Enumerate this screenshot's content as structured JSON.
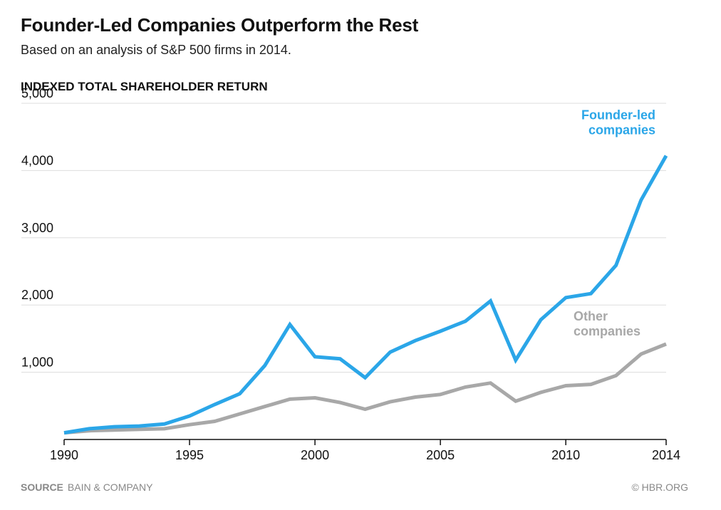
{
  "header": {
    "title": "Founder-Led Companies Outperform the Rest",
    "subtitle": "Based on an analysis of S&P 500 firms in 2014."
  },
  "footer": {
    "source_key": "SOURCE",
    "source_value": "BAIN & COMPANY",
    "credit": "© HBR.ORG"
  },
  "colors": {
    "founder": "#2ba6e8",
    "other": "#a8a8a8",
    "grid": "#dddddd",
    "axis": "#111111"
  },
  "chart_data": {
    "type": "line",
    "title": "INDEXED TOTAL SHAREHOLDER RETURN",
    "xlabel": "",
    "ylabel": "",
    "x": [
      1990,
      1991,
      1992,
      1993,
      1994,
      1995,
      1996,
      1997,
      1998,
      1999,
      2000,
      2001,
      2002,
      2003,
      2004,
      2005,
      2006,
      2007,
      2008,
      2009,
      2010,
      2011,
      2012,
      2013,
      2014
    ],
    "xlim": [
      1990,
      2014
    ],
    "ylim": [
      0,
      5000
    ],
    "x_ticks": [
      1990,
      1995,
      2000,
      2005,
      2010,
      2014
    ],
    "x_tick_labels": [
      "1990",
      "1995",
      "2000",
      "2005",
      "2010",
      "2014"
    ],
    "y_ticks": [
      1000,
      2000,
      3000,
      4000,
      5000
    ],
    "y_tick_labels": [
      "1,000",
      "2,000",
      "3,000",
      "4,000",
      "5,000"
    ],
    "grid": true,
    "series": [
      {
        "name": "Founder-led companies",
        "label_lines": [
          "Founder-led",
          "companies"
        ],
        "color": "#2ba6e8",
        "values": [
          100,
          160,
          190,
          200,
          230,
          350,
          520,
          680,
          1100,
          1710,
          1230,
          1200,
          920,
          1300,
          1470,
          1610,
          1760,
          2060,
          1180,
          1780,
          2110,
          2170,
          2590,
          3560,
          4220
        ]
      },
      {
        "name": "Other companies",
        "label_lines": [
          "Other",
          "companies"
        ],
        "color": "#a8a8a8",
        "values": [
          100,
          130,
          140,
          150,
          160,
          220,
          270,
          380,
          490,
          600,
          620,
          550,
          450,
          560,
          630,
          670,
          780,
          840,
          570,
          700,
          800,
          820,
          950,
          1270,
          1420
        ]
      }
    ]
  }
}
